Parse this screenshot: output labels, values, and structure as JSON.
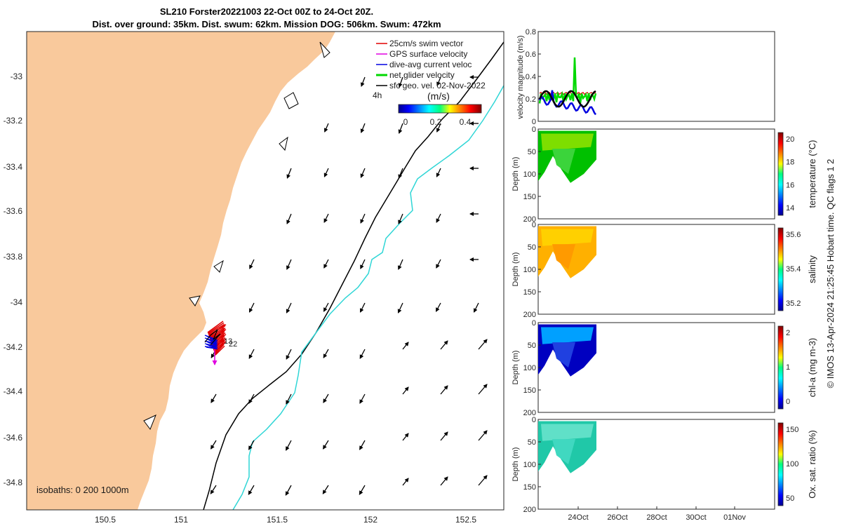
{
  "title": {
    "line1": "SL210 Forster20221003 22-Oct 00Z to 24-Oct 20Z.",
    "line2": "Dist. over ground: 35km. Dist. swum: 62km. Mission DOG: 506km. Swum: 472km"
  },
  "map": {
    "land_color": "#f9c99c",
    "x_ticks": [
      "150.5",
      "151",
      "151.5",
      "152",
      "152.5"
    ],
    "y_ticks": [
      "-33",
      "-33.2",
      "-33.4",
      "-33.6",
      "-33.8",
      "-34",
      "-34.2",
      "-34.4",
      "-34.6",
      "-34.8"
    ],
    "legend": [
      {
        "label": "25cm/s swim vector",
        "color": "#e00000"
      },
      {
        "label": "GPS surface velocity",
        "color": "#e000e0"
      },
      {
        "label": "dive-avg current veloc",
        "color": "#0000e0"
      },
      {
        "label": "net glider velocity",
        "color": "#00d800"
      },
      {
        "label": "sfc geo. vel. 02-Nov-2022",
        "color": "#000000"
      }
    ],
    "colorbar": {
      "label": "(m/s)",
      "ticks": [
        "0",
        "0.2",
        "0.4"
      ],
      "time_label": "4h"
    },
    "track_labels": [
      "13",
      "22"
    ],
    "isobaths_label": "isobaths: 0   200  1000m"
  },
  "chart_data": [
    {
      "type": "line",
      "ylabel": "velocity magnitude (m/s)",
      "ylim": [
        0,
        0.8
      ],
      "y_ticks": [
        "0",
        "0.2",
        "0.4",
        "0.6",
        "0.8"
      ],
      "series": [
        {
          "color": "#00d800"
        },
        {
          "color": "#0000e0"
        },
        {
          "color": "#000000"
        },
        {
          "color": "#e00000"
        }
      ]
    },
    {
      "type": "heatmap",
      "colorbar_label": "temperature (°C)",
      "colorbar_ticks": [
        "14",
        "16",
        "18",
        "20"
      ],
      "y_ticks": [
        "0",
        "50",
        "100",
        "150",
        "200"
      ],
      "ylabel": "Depth (m)"
    },
    {
      "type": "heatmap",
      "colorbar_label": "salinity",
      "colorbar_ticks": [
        "35.2",
        "35.4",
        "35.6"
      ],
      "y_ticks": [
        "0",
        "50",
        "100",
        "150",
        "200"
      ],
      "ylabel": "Depth (m)"
    },
    {
      "type": "heatmap",
      "colorbar_label": "chl-a (mg m-3)",
      "colorbar_ticks": [
        "0",
        "1",
        "2"
      ],
      "y_ticks": [
        "0",
        "50",
        "100",
        "150",
        "200"
      ],
      "ylabel": "Depth (m)"
    },
    {
      "type": "heatmap",
      "colorbar_label": "Ox. sat. ratio (%)",
      "colorbar_ticks": [
        "50",
        "100",
        "150"
      ],
      "y_ticks": [
        "0",
        "50",
        "100",
        "150",
        "200"
      ],
      "ylabel": "Depth (m)"
    }
  ],
  "time_axis": {
    "ticks": [
      "24Oct",
      "26Oct",
      "28Oct",
      "30Oct",
      "01Nov"
    ]
  },
  "footer": "© IMOS 13-Apr-2024 21:25:45 Hobart time. QC flags 1  2"
}
